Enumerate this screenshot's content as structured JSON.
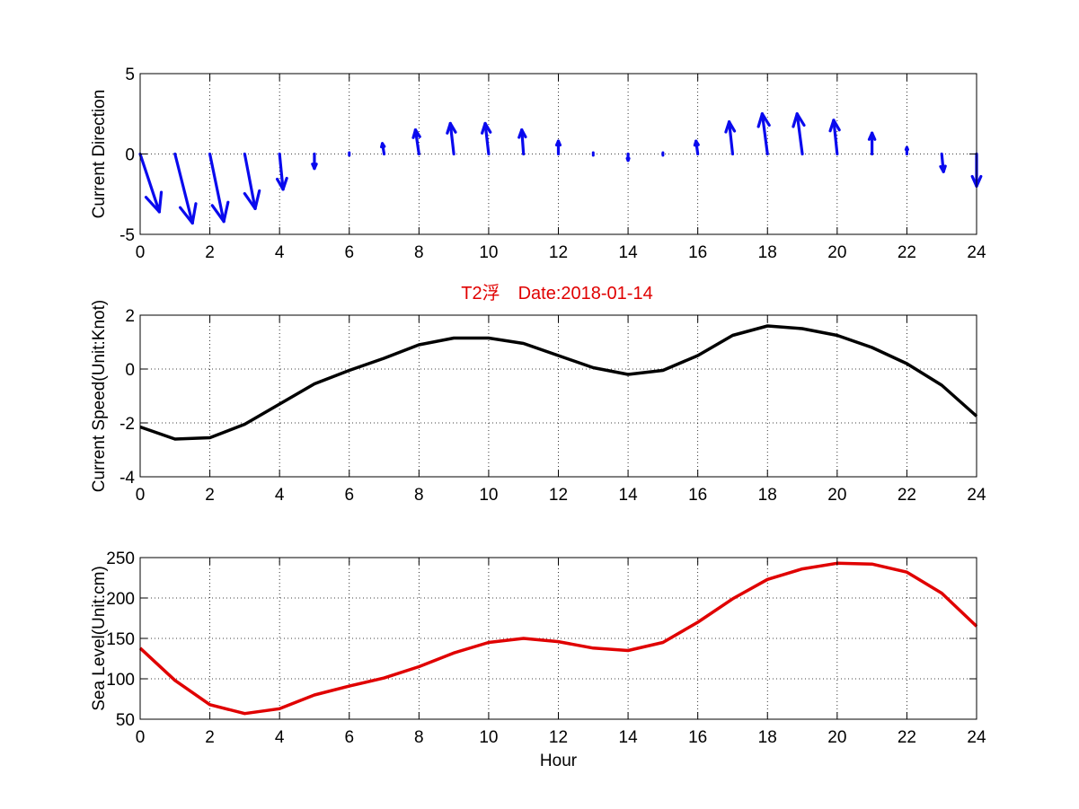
{
  "figure": {
    "suptitle": "T2浮　Date:2018-01-14",
    "title_color": "#e00000"
  },
  "chart_data": [
    {
      "type": "quiver",
      "ylabel": "Current Direction",
      "xlabel": "",
      "xlim": [
        0,
        24
      ],
      "ylim": [
        -5,
        5
      ],
      "xticks": [
        "0",
        "2",
        "4",
        "6",
        "8",
        "10",
        "12",
        "14",
        "16",
        "18",
        "20",
        "22",
        "24"
      ],
      "yticks": [
        "-5",
        "0",
        "5"
      ],
      "grid": true,
      "color": "#0a0aee",
      "arrows": [
        {
          "x": 0,
          "u": 0.55,
          "v": -3.6
        },
        {
          "x": 1,
          "u": 0.5,
          "v": -4.3
        },
        {
          "x": 2,
          "u": 0.4,
          "v": -4.2
        },
        {
          "x": 3,
          "u": 0.3,
          "v": -3.4
        },
        {
          "x": 4,
          "u": 0.1,
          "v": -2.2
        },
        {
          "x": 5,
          "u": 0.0,
          "v": -0.9
        },
        {
          "x": 6,
          "u": 0.0,
          "v": -0.15
        },
        {
          "x": 7,
          "u": -0.05,
          "v": 0.65
        },
        {
          "x": 8,
          "u": -0.1,
          "v": 1.5
        },
        {
          "x": 9,
          "u": -0.1,
          "v": 1.9
        },
        {
          "x": 10,
          "u": -0.1,
          "v": 1.9
        },
        {
          "x": 11,
          "u": -0.05,
          "v": 1.5
        },
        {
          "x": 12,
          "u": 0.0,
          "v": 0.8
        },
        {
          "x": 13,
          "u": 0.0,
          "v": 0.1
        },
        {
          "x": 14,
          "u": 0.0,
          "v": -0.4
        },
        {
          "x": 15,
          "u": 0.0,
          "v": -0.15
        },
        {
          "x": 16,
          "u": -0.05,
          "v": 0.8
        },
        {
          "x": 17,
          "u": -0.1,
          "v": 2.0
        },
        {
          "x": 18,
          "u": -0.15,
          "v": 2.5
        },
        {
          "x": 19,
          "u": -0.15,
          "v": 2.5
        },
        {
          "x": 20,
          "u": -0.1,
          "v": 2.1
        },
        {
          "x": 21,
          "u": 0.0,
          "v": 1.3
        },
        {
          "x": 22,
          "u": 0.0,
          "v": 0.4
        },
        {
          "x": 23,
          "u": 0.05,
          "v": -1.1
        },
        {
          "x": 24,
          "u": 0.0,
          "v": -2.0
        }
      ]
    },
    {
      "type": "line",
      "ylabel": "Current Speed(Unit:Knot)",
      "xlabel": "",
      "xlim": [
        0,
        24
      ],
      "ylim": [
        -4,
        2
      ],
      "xticks": [
        "0",
        "2",
        "4",
        "6",
        "8",
        "10",
        "12",
        "14",
        "16",
        "18",
        "20",
        "22",
        "24"
      ],
      "yticks": [
        "-4",
        "-2",
        "0",
        "2"
      ],
      "grid": true,
      "series": [
        {
          "color": "#000000",
          "x": [
            0,
            1,
            2,
            3,
            4,
            5,
            6,
            7,
            8,
            9,
            10,
            11,
            12,
            13,
            14,
            15,
            16,
            17,
            18,
            19,
            20,
            21,
            22,
            23,
            24
          ],
          "y": [
            -2.15,
            -2.6,
            -2.55,
            -2.05,
            -1.3,
            -0.55,
            -0.05,
            0.4,
            0.9,
            1.15,
            1.15,
            0.95,
            0.5,
            0.05,
            -0.2,
            -0.05,
            0.5,
            1.25,
            1.6,
            1.5,
            1.25,
            0.8,
            0.2,
            -0.6,
            -1.75
          ]
        }
      ]
    },
    {
      "type": "line",
      "ylabel": "Sea Level(Unit:cm)",
      "xlabel": "Hour",
      "xlim": [
        0,
        24
      ],
      "ylim": [
        50,
        250
      ],
      "xticks": [
        "0",
        "2",
        "4",
        "6",
        "8",
        "10",
        "12",
        "14",
        "16",
        "18",
        "20",
        "22",
        "24"
      ],
      "yticks": [
        "50",
        "100",
        "150",
        "200",
        "250"
      ],
      "grid": true,
      "series": [
        {
          "color": "#e00000",
          "x": [
            0,
            1,
            2,
            3,
            4,
            5,
            6,
            7,
            8,
            9,
            10,
            11,
            12,
            13,
            14,
            15,
            16,
            17,
            18,
            19,
            20,
            21,
            22,
            23,
            24
          ],
          "y": [
            138,
            98,
            68,
            57,
            63,
            80,
            91,
            101,
            115,
            132,
            145,
            150,
            146,
            138,
            135,
            145,
            170,
            199,
            223,
            236,
            243,
            242,
            232,
            206,
            165
          ]
        }
      ]
    }
  ]
}
